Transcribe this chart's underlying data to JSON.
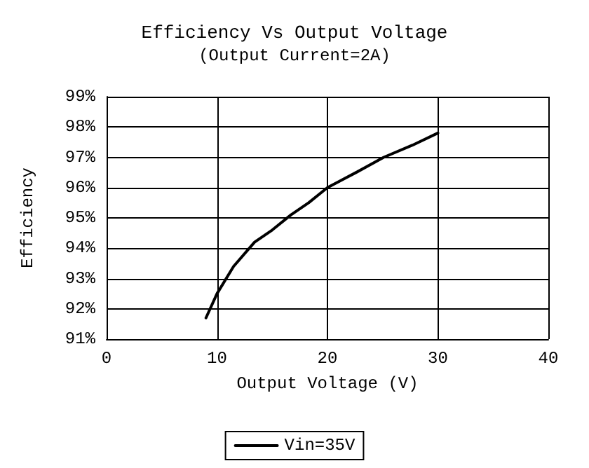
{
  "chart_data": {
    "type": "line",
    "title": "Efficiency Vs Output Voltage",
    "subtitle": "(Output Current=2A)",
    "xlabel": "Output Voltage (V)",
    "ylabel": "Efficiency",
    "series": [
      {
        "name": "Vin=35V",
        "color": "#000000",
        "x": [
          9.0,
          10.0,
          11.5,
          13.4,
          15.0,
          16.7,
          18.3,
          20.0,
          22.6,
          25.1,
          27.7,
          30.0
        ],
        "values": [
          91.7,
          92.5,
          93.4,
          94.2,
          94.6,
          95.1,
          95.5,
          96.0,
          96.5,
          97.0,
          97.4,
          97.8
        ]
      }
    ],
    "xlim": [
      0,
      40
    ],
    "xticks": [
      0,
      10,
      20,
      30,
      40
    ],
    "ylim": [
      91,
      99
    ],
    "yticks": [
      {
        "value": 91,
        "label": "91%"
      },
      {
        "value": 92,
        "label": "92%"
      },
      {
        "value": 93,
        "label": "93%"
      },
      {
        "value": 94,
        "label": "94%"
      },
      {
        "value": 95,
        "label": "95%"
      },
      {
        "value": 96,
        "label": "96%"
      },
      {
        "value": 97,
        "label": "97%"
      },
      {
        "value": 98,
        "label": "98%"
      },
      {
        "value": 99,
        "label": "99%"
      }
    ],
    "grid": true,
    "legend": "bottom",
    "marker": "none",
    "line_style": "solid"
  }
}
